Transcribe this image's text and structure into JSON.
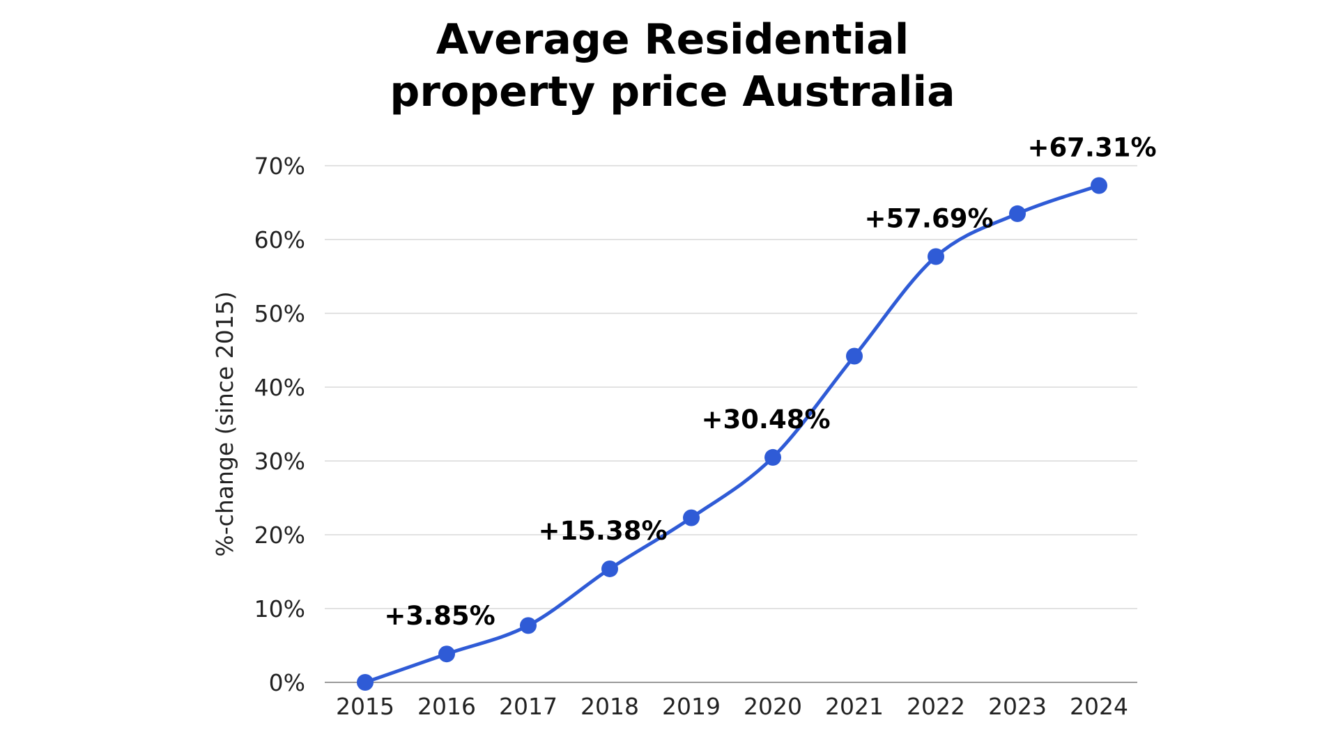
{
  "chart_data": {
    "type": "line",
    "title_lines": [
      "Average Residential",
      "property price Australia"
    ],
    "xlabel": "",
    "ylabel": "%-change (since 2015)",
    "categories": [
      "2015",
      "2016",
      "2017",
      "2018",
      "2019",
      "2020",
      "2021",
      "2022",
      "2023",
      "2024"
    ],
    "series": [
      {
        "values": [
          0,
          3.85,
          7.7,
          15.38,
          22.3,
          30.48,
          44.2,
          57.69,
          63.5,
          67.31
        ]
      }
    ],
    "ylim": [
      0,
      70
    ],
    "yticks": [
      0,
      10,
      20,
      30,
      40,
      50,
      60,
      70
    ],
    "ytick_labels": [
      "0%",
      "10%",
      "20%",
      "30%",
      "40%",
      "50%",
      "60%",
      "70%"
    ],
    "annotations": [
      {
        "category": "2016",
        "text": "+3.85%"
      },
      {
        "category": "2018",
        "text": "+15.38%"
      },
      {
        "category": "2020",
        "text": "+30.48%"
      },
      {
        "category": "2022",
        "text": "+57.69%"
      },
      {
        "category": "2024",
        "text": "+67.31%"
      }
    ],
    "grid": true,
    "legend": "none",
    "line_color": "#2f5bd6",
    "grid_color": "#d9d9d9",
    "axis_color": "#9a9a9a"
  }
}
